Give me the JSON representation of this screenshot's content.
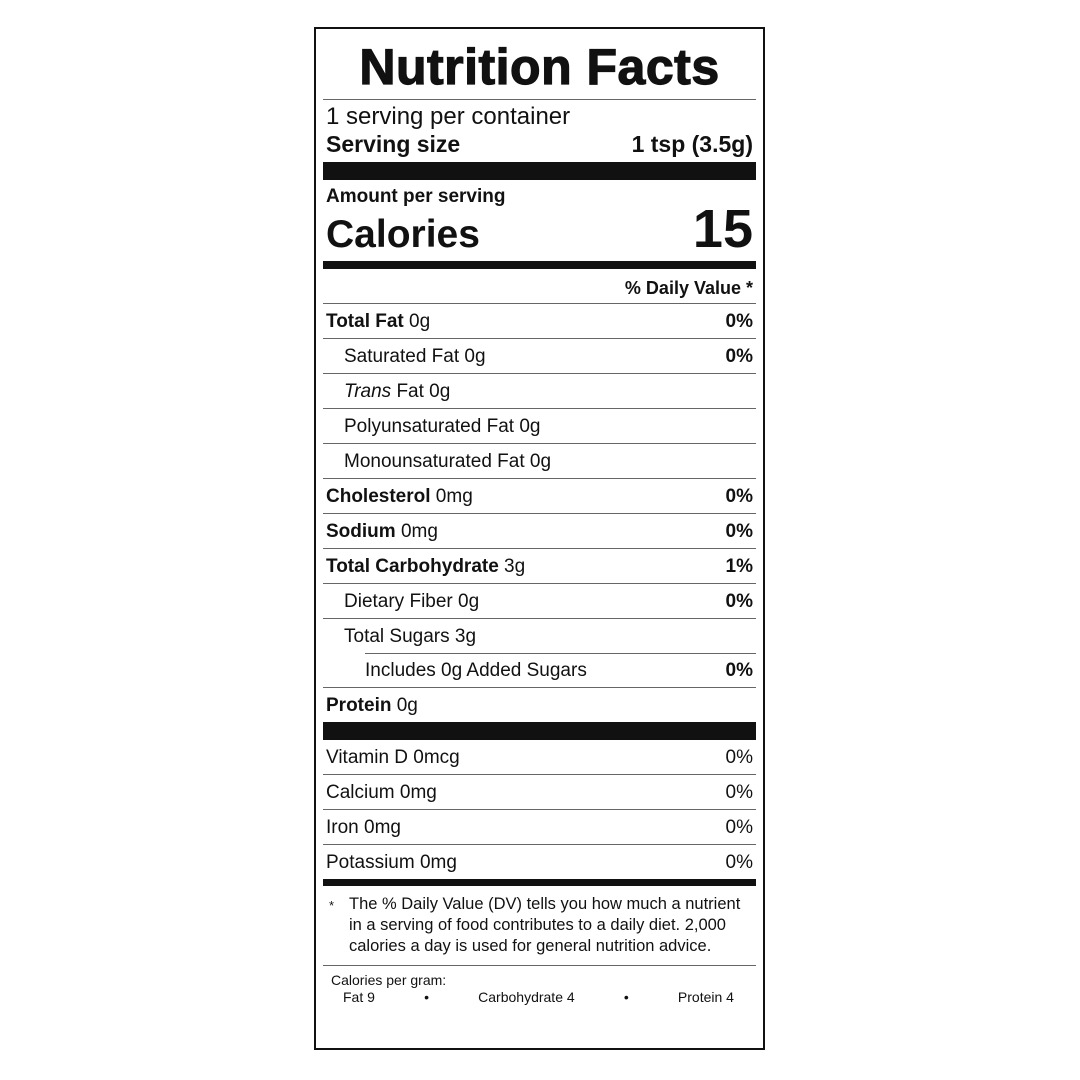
{
  "title": "Nutrition Facts",
  "servings_per_container": "1 serving per container",
  "serving_size_label": "Serving size",
  "serving_size_value": "1 tsp (3.5g)",
  "amount_per_serving": "Amount per serving",
  "calories_label": "Calories",
  "calories_value": "15",
  "daily_value_header": "% Daily Value *",
  "nutrients": [
    {
      "name": "Total Fat",
      "amount": " 0g",
      "dv": "0%",
      "indent": 0
    },
    {
      "name": "Saturated Fat 0g",
      "amount": "",
      "dv": "0%",
      "indent": 1
    },
    {
      "name": "Trans",
      "amount": " Fat 0g",
      "dv": "",
      "indent": 1
    },
    {
      "name": "Polyunsaturated Fat 0g",
      "amount": "",
      "dv": "",
      "indent": 1
    },
    {
      "name": "Monounsaturated Fat 0g",
      "amount": "",
      "dv": "",
      "indent": 1
    },
    {
      "name": "Cholesterol",
      "amount": " 0mg",
      "dv": "0%",
      "indent": 0
    },
    {
      "name": "Sodium",
      "amount": " 0mg",
      "dv": "0%",
      "indent": 0
    },
    {
      "name": "Total Carbohydrate",
      "amount": " 3g",
      "dv": "1%",
      "indent": 0
    },
    {
      "name": "Dietary Fiber 0g",
      "amount": "",
      "dv": "0%",
      "indent": 1
    },
    {
      "name": "Total Sugars 3g",
      "amount": "",
      "dv": "",
      "indent": 1
    },
    {
      "name": "Includes 0g Added Sugars",
      "amount": "",
      "dv": "0%",
      "indent": 2
    },
    {
      "name": "Protein",
      "amount": " 0g",
      "dv": "",
      "indent": 0
    }
  ],
  "vitamins": [
    {
      "name": "Vitamin D 0mcg",
      "dv": "0%"
    },
    {
      "name": "Calcium 0mg",
      "dv": "0%"
    },
    {
      "name": "Iron 0mg",
      "dv": "0%"
    },
    {
      "name": "Potassium 0mg",
      "dv": "0%"
    }
  ],
  "footnote_star": "*",
  "footnote": "The % Daily Value (DV) tells you how much a nutrient in a serving of food contributes to a daily diet. 2,000 calories a day is used for general nutrition advice.",
  "calories_per_gram": {
    "label": "Calories per gram:",
    "fat": "Fat 9",
    "sep": "•",
    "carb": "Carbohydrate 4",
    "protein": "Protein 4"
  }
}
